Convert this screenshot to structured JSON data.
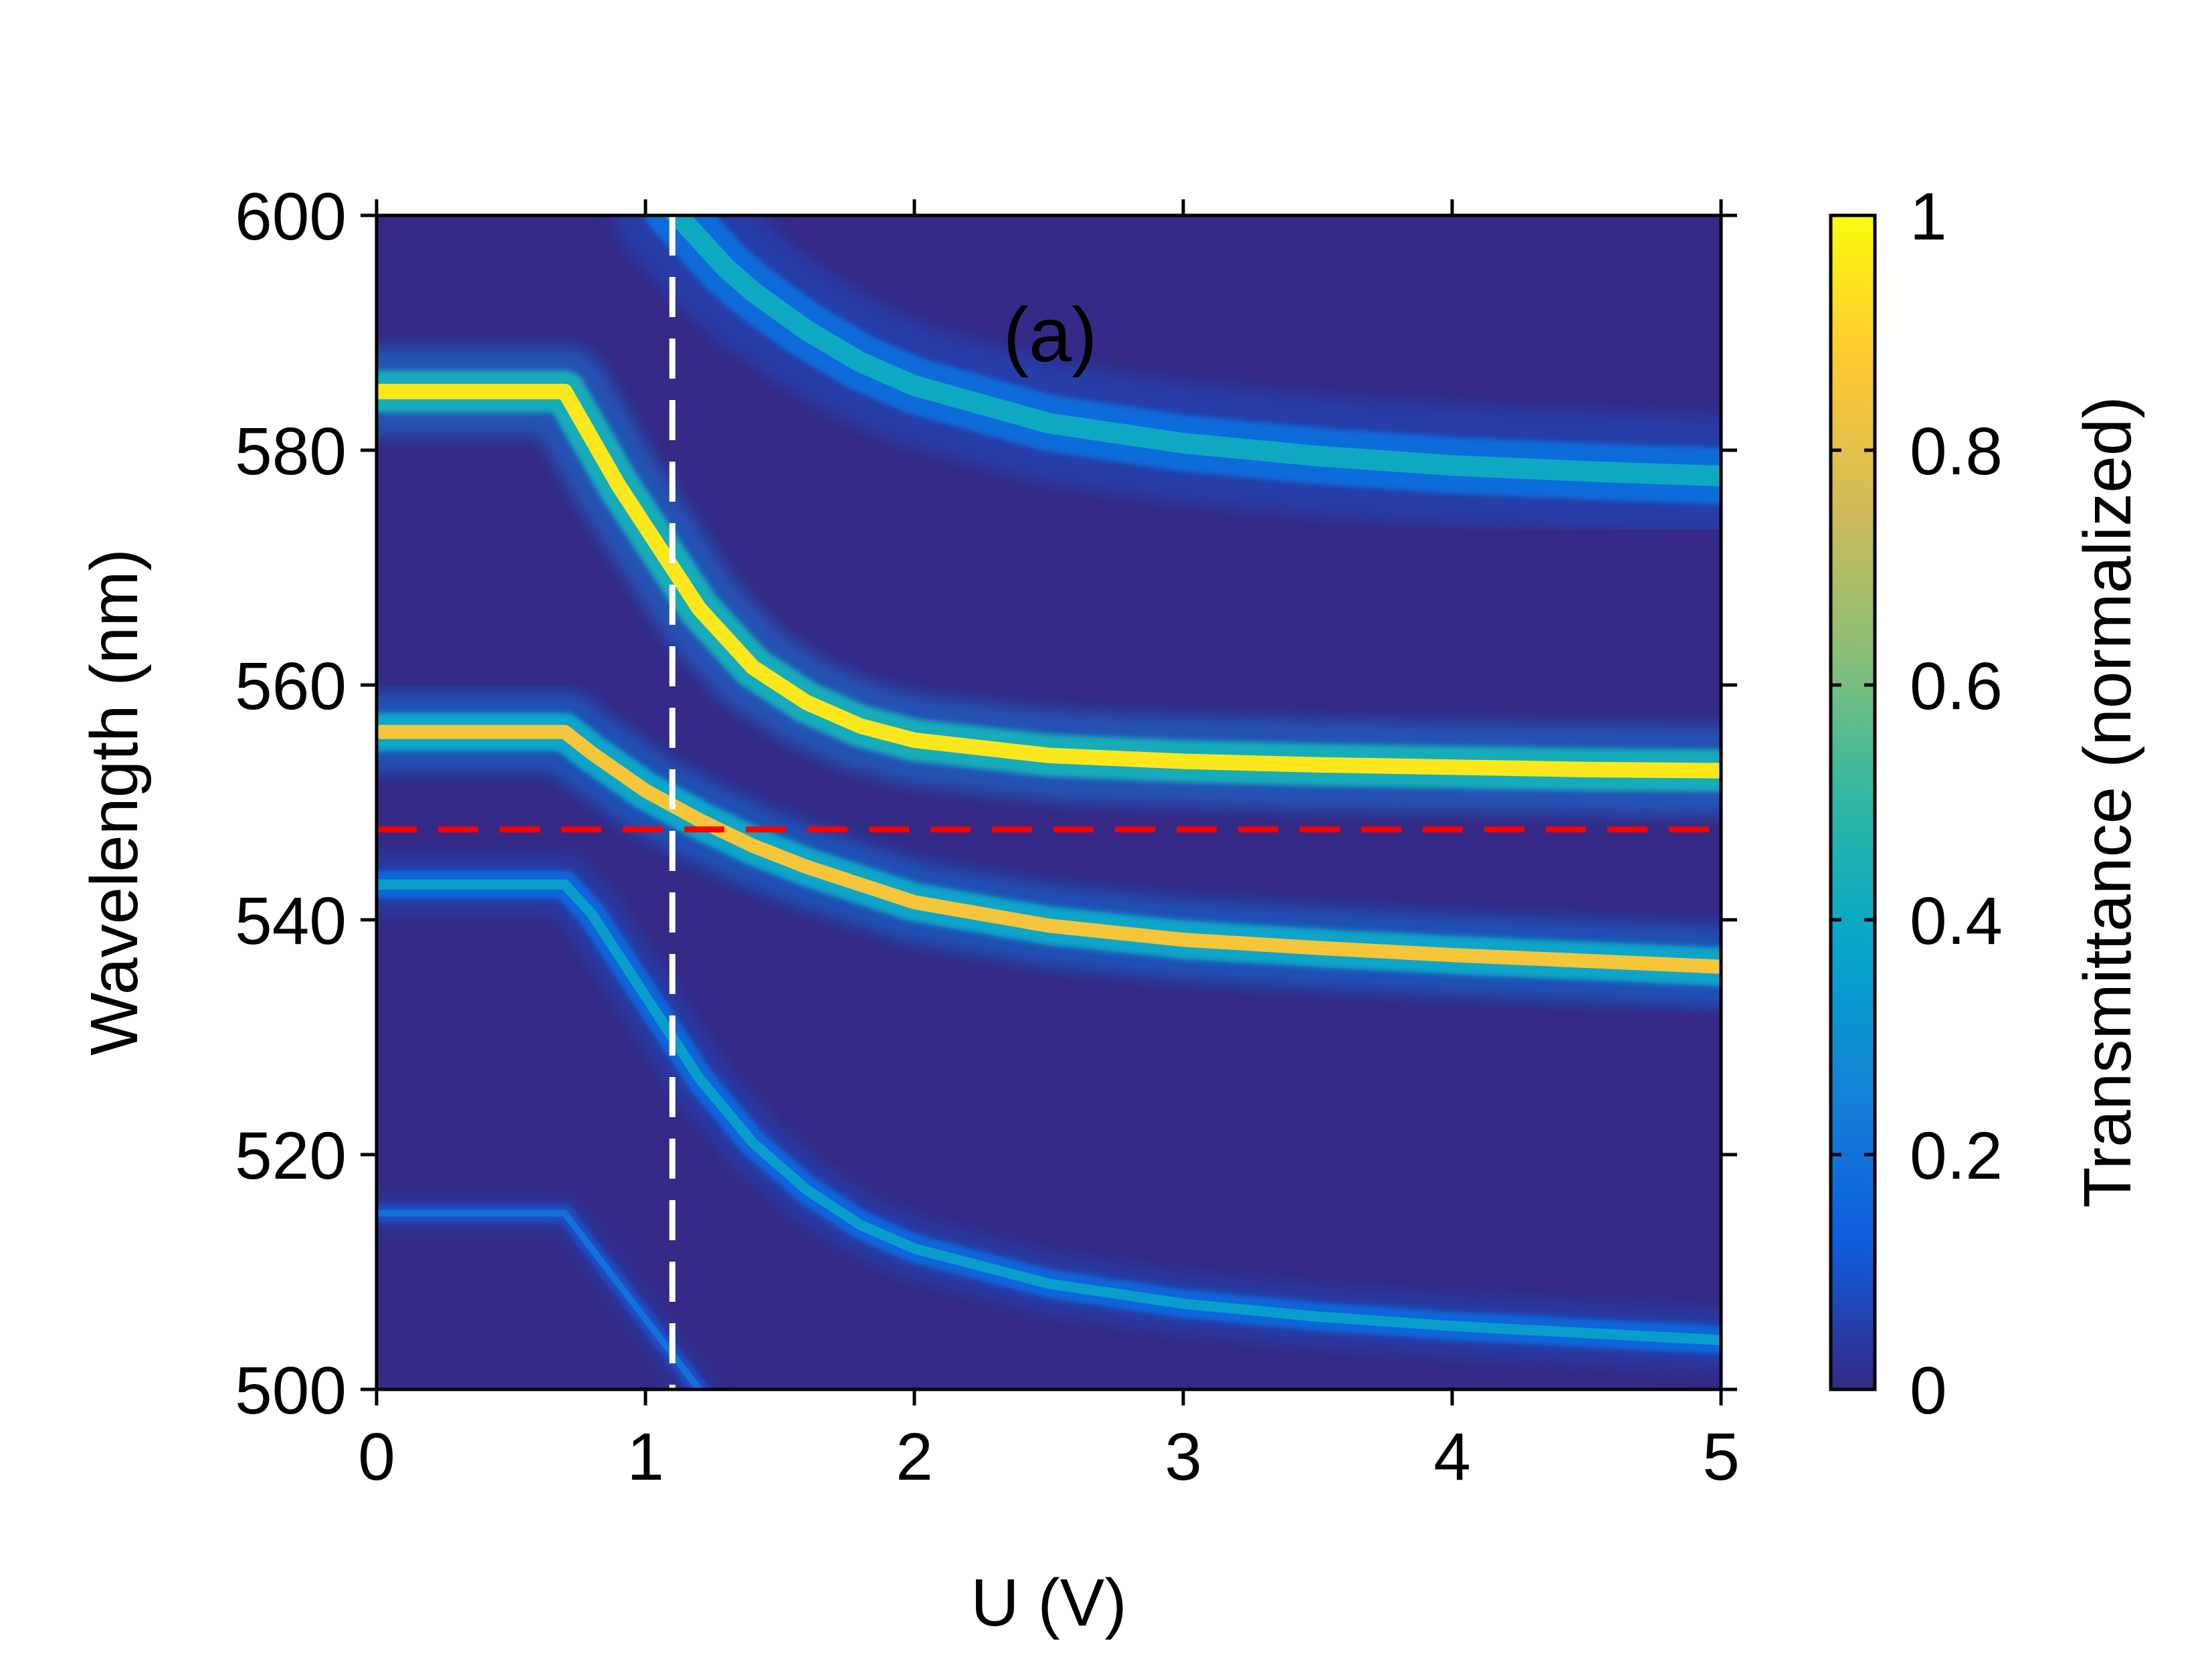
{
  "chart_data": {
    "type": "heatmap",
    "annotation": "(a)",
    "xlabel": "U (V)",
    "ylabel": "Wavelength (nm)",
    "xlim": [
      0,
      5
    ],
    "ylim": [
      500,
      600
    ],
    "xticks": [
      0,
      1,
      2,
      3,
      4,
      5
    ],
    "yticks": [
      500,
      520,
      540,
      560,
      580,
      600
    ],
    "grid": false,
    "colorbar": {
      "label": "Transmittance (normalized)",
      "range": [
        0,
        1
      ],
      "ticks": [
        "0",
        "0.2",
        "0.4",
        "0.6",
        "0.8",
        "1"
      ],
      "colormap": [
        "#352a87",
        "#0f5cdd",
        "#1481d6",
        "#06a4ca",
        "#2eb7a4",
        "#87bf77",
        "#d1bb59",
        "#fec832",
        "#f9fb0e"
      ]
    },
    "reference_lines": [
      {
        "orientation": "vertical",
        "at": 1.1,
        "unit": "V",
        "color": "#ffffff",
        "style": "dashed"
      },
      {
        "orientation": "horizontal",
        "at": 547.7,
        "unit": "nm",
        "color": "#ff0000",
        "style": "dashed"
      }
    ],
    "transmission_bands": [
      {
        "u": [
          0.0,
          0.7,
          1.0,
          1.2,
          1.4,
          1.6,
          1.8,
          2.0,
          2.5,
          3.0,
          3.5,
          4.0,
          4.5,
          5.0
        ],
        "wavelength": [
          515,
          515,
          506,
          500,
          null,
          null,
          null,
          null,
          null,
          null,
          null,
          null,
          null,
          null
        ],
        "peak_transmittance": 0.2,
        "width_nm": 1.0
      },
      {
        "u": [
          0.0,
          0.7,
          0.8,
          0.9,
          1.0,
          1.1,
          1.2,
          1.4,
          1.6,
          1.8,
          2.0,
          2.5,
          3.0,
          3.5,
          4.0,
          4.5,
          5.0
        ],
        "wavelength": [
          543,
          543,
          540.5,
          537,
          533.5,
          530,
          526.5,
          521,
          517,
          514,
          512,
          509,
          507.3,
          506.2,
          505.4,
          504.8,
          504.2
        ],
        "peak_transmittance": 0.35,
        "width_nm": 1.6
      },
      {
        "u": [
          0.0,
          0.7,
          0.8,
          1.0,
          1.2,
          1.4,
          1.6,
          1.8,
          2.0,
          2.5,
          3.0,
          3.5,
          4.0,
          4.5,
          5.0
        ],
        "wavelength": [
          556,
          556,
          554.2,
          551,
          548.5,
          546.3,
          544.5,
          543,
          541.5,
          539.5,
          538.3,
          537.6,
          537,
          536.5,
          536
        ],
        "peak_transmittance": 0.85,
        "width_nm": 2.2
      },
      {
        "u": [
          0.0,
          0.7,
          0.8,
          0.9,
          1.0,
          1.1,
          1.2,
          1.4,
          1.6,
          1.8,
          2.0,
          2.5,
          3.0,
          3.5,
          4.0,
          4.5,
          5.0
        ],
        "wavelength": [
          585,
          585,
          581,
          577,
          573.5,
          570,
          566.5,
          561.5,
          558.5,
          556.5,
          555.3,
          554,
          553.5,
          553.2,
          553,
          552.8,
          552.7
        ],
        "peak_transmittance": 0.95,
        "width_nm": 2.4
      },
      {
        "u": [
          1.1,
          1.2,
          1.3,
          1.4,
          1.6,
          1.8,
          2.0,
          2.5,
          3.0,
          3.5,
          4.0,
          4.5,
          5.0
        ],
        "wavelength": [
          600.5,
          598,
          595.5,
          593.5,
          590.2,
          587.5,
          585.5,
          582.3,
          580.6,
          579.5,
          578.7,
          578.2,
          577.8
        ],
        "peak_transmittance": 0.4,
        "width_nm": 3.2
      }
    ]
  }
}
